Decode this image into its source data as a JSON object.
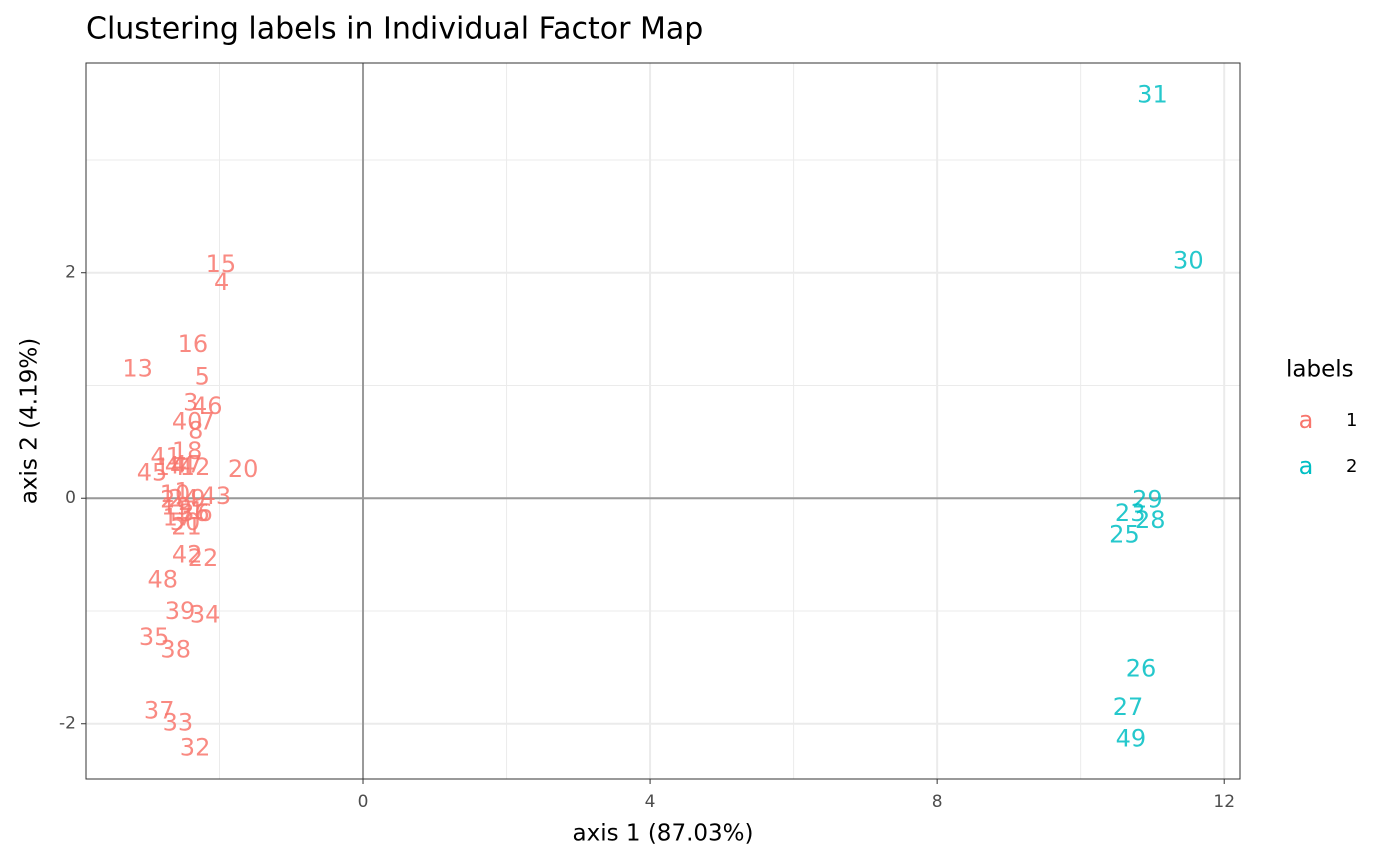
{
  "chart_data": {
    "type": "text-scatter",
    "title": "Clustering labels in Individual Factor Map",
    "xlabel": "axis 1 (87.03%)",
    "ylabel": "axis 2 (4.19%)",
    "xlim": [
      -3.86,
      12.22
    ],
    "ylim": [
      -2.49,
      3.86
    ],
    "xticks": [
      0,
      4,
      8,
      12
    ],
    "yticks": [
      -2,
      0,
      2
    ],
    "x_minor_ticks": [
      -2,
      2,
      6,
      10
    ],
    "y_minor_ticks": [
      -1,
      1,
      3
    ],
    "zero_lines": true,
    "grid": true,
    "legend_title": "labels",
    "legend_key_glyph": "a",
    "legend_position": "right",
    "series": [
      {
        "name": "1",
        "color": "#f8766d",
        "labels": [
          "15",
          "4",
          "16",
          "13",
          "5",
          "3",
          "46",
          "40",
          "7",
          "8",
          "41",
          "18",
          "45",
          "14",
          "44",
          "12",
          "47",
          "20",
          "2",
          "10",
          "1",
          "24",
          "9",
          "43",
          "19",
          "11",
          "36",
          "6",
          "50",
          "21",
          "17",
          "42",
          "22",
          "48",
          "39",
          "34",
          "35",
          "38",
          "37",
          "33",
          "32"
        ],
        "x": [
          -1.98,
          -1.97,
          -2.37,
          -3.14,
          -2.24,
          -2.4,
          -2.17,
          -2.45,
          -2.17,
          -2.33,
          -2.75,
          -2.45,
          -2.94,
          -2.69,
          -2.55,
          -2.34,
          -2.45,
          -1.67,
          -2.72,
          -2.62,
          -2.52,
          -2.5,
          -2.3,
          -2.05,
          -2.6,
          -2.42,
          -2.35,
          -2.2,
          -2.48,
          -2.46,
          -2.58,
          -2.45,
          -2.23,
          -2.79,
          -2.55,
          -2.2,
          -2.91,
          -2.61,
          -2.84,
          -2.58,
          -2.34
        ],
        "values": [
          2.07,
          1.91,
          1.36,
          1.14,
          1.07,
          0.84,
          0.81,
          0.67,
          0.67,
          0.59,
          0.36,
          0.41,
          0.22,
          0.27,
          0.28,
          0.27,
          0.29,
          0.25,
          -0.02,
          0.03,
          0.05,
          -0.01,
          -0.01,
          0.01,
          -0.08,
          -0.12,
          -0.14,
          -0.14,
          -0.22,
          -0.26,
          -0.18,
          -0.51,
          -0.54,
          -0.73,
          -1.01,
          -1.04,
          -1.24,
          -1.35,
          -1.89,
          -2.0,
          -2.22
        ]
      },
      {
        "name": "2",
        "color": "#00bfc4",
        "labels": [
          "31",
          "30",
          "29",
          "23",
          "28",
          "25",
          "26",
          "27",
          "49"
        ],
        "x": [
          11.0,
          11.5,
          10.93,
          10.69,
          10.97,
          10.61,
          10.84,
          10.66,
          10.7
        ],
        "values": [
          3.57,
          2.1,
          -0.02,
          -0.14,
          -0.2,
          -0.33,
          -1.52,
          -1.86,
          -2.14
        ]
      }
    ]
  }
}
